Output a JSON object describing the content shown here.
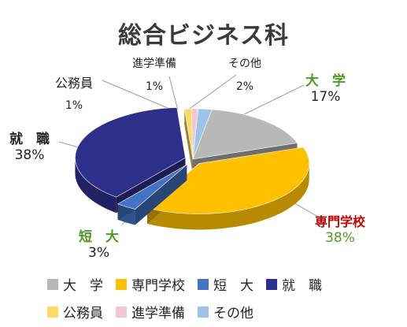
{
  "chart_data": {
    "type": "pie",
    "title": "総合ビジネス科",
    "categories": [
      "大　学",
      "専門学校",
      "短　大",
      "就　職",
      "公務員",
      "進学準備",
      "その他"
    ],
    "values": [
      17,
      38,
      3,
      38,
      1,
      1,
      2
    ],
    "value_labels": [
      "17%",
      "38%",
      "3%",
      "38%",
      "1%",
      "1%",
      "2%"
    ],
    "colors": [
      "#b8b8b8",
      "#ffc000",
      "#4472c4",
      "#2e2f8a",
      "#ffd966",
      "#f4c7d0",
      "#9dc3e6"
    ],
    "label_colors": [
      "#4e9a24",
      "#c00000",
      "#4e9a24",
      "#222222",
      "#222222",
      "#222222",
      "#222222"
    ],
    "legend_position": "bottom",
    "style": "3d-exploded"
  }
}
